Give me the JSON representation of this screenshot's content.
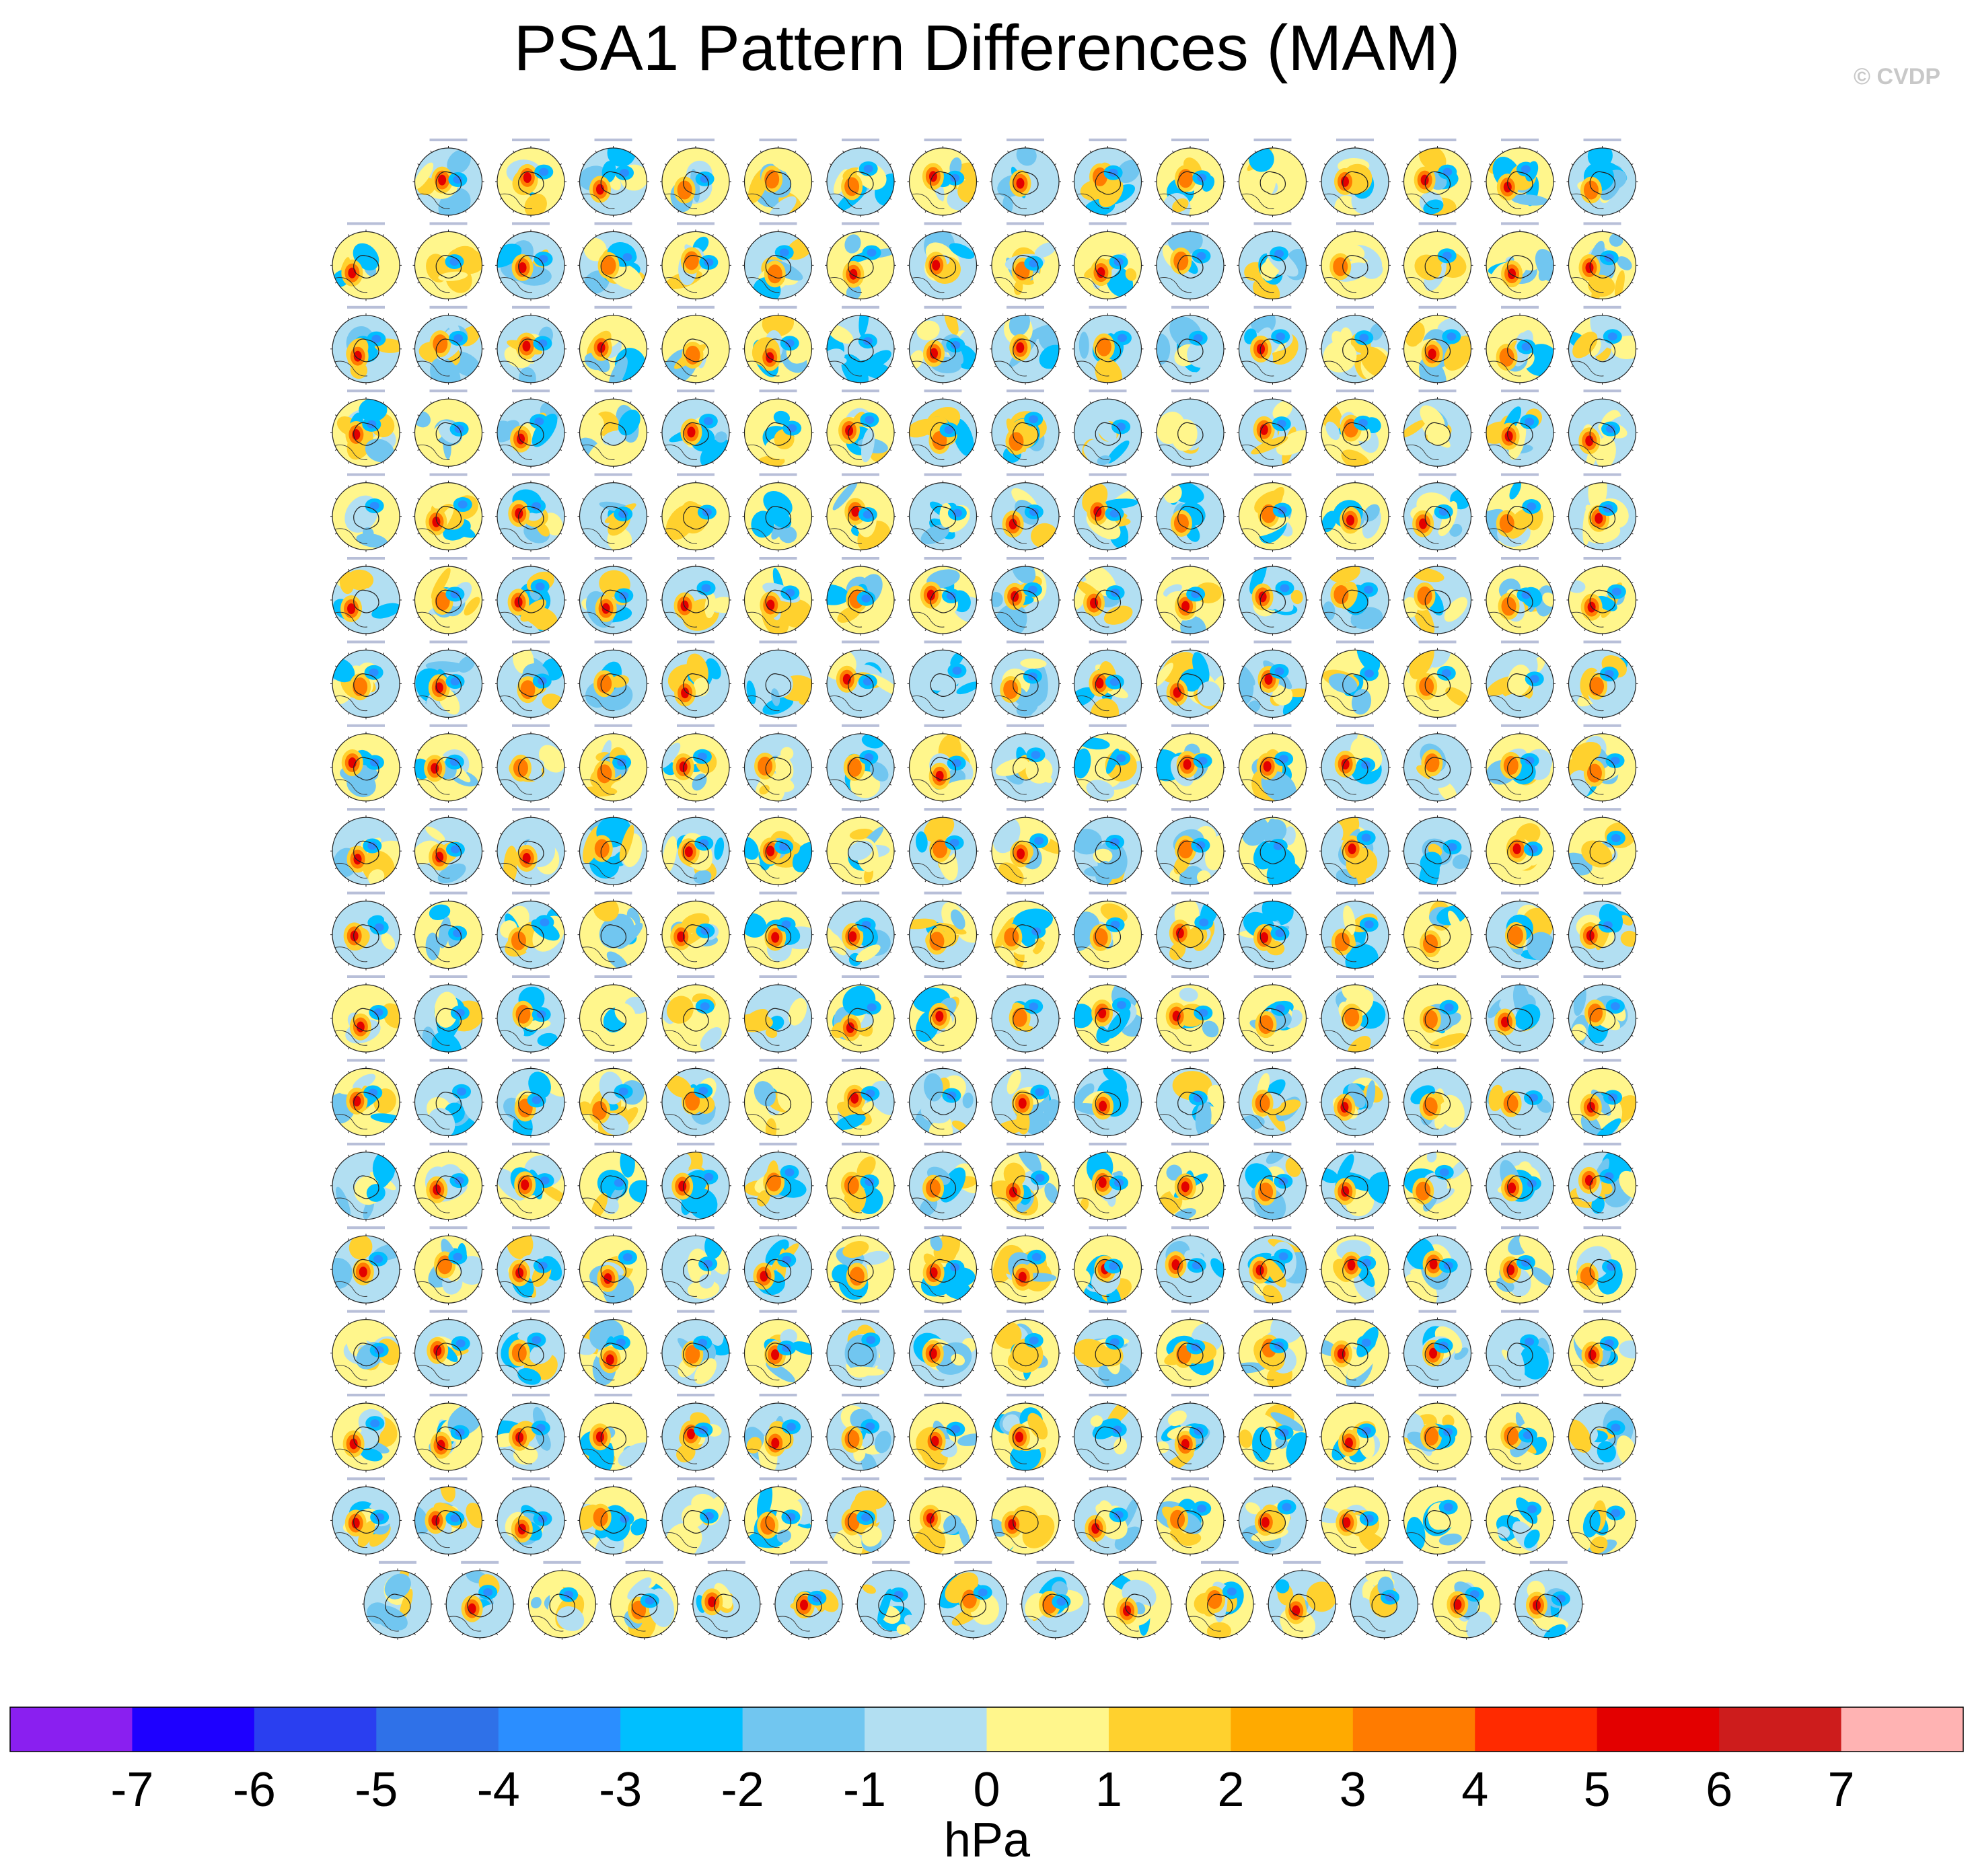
{
  "title": "PSA1 Pattern Differences (MAM)",
  "credit": "© CVDP",
  "chart_data": {
    "type": "heatmap",
    "title": "PSA1 Pattern Differences (MAM)",
    "description_type": "small-multiples polar stereographic maps",
    "rows": [
      15,
      16,
      16,
      16,
      16,
      16,
      16,
      16,
      16,
      16,
      16,
      16,
      16,
      16,
      16,
      16,
      16,
      15
    ],
    "row_alignment": [
      "right",
      "full",
      "full",
      "full",
      "full",
      "full",
      "full",
      "full",
      "full",
      "full",
      "full",
      "full",
      "full",
      "full",
      "full",
      "full",
      "full",
      "center"
    ],
    "colorbar": {
      "label": "hPa",
      "tick_labels": [
        "-7",
        "-6",
        "-5",
        "-4",
        "-3",
        "-2",
        "-1",
        "0",
        "1",
        "2",
        "3",
        "4",
        "5",
        "6",
        "7"
      ],
      "colors": [
        "#8a1ff0",
        "#1e00ff",
        "#2a3ff0",
        "#2f71e8",
        "#2b8eff",
        "#00bfff",
        "#71c6f0",
        "#b2dff2",
        "#fff68c",
        "#ffd12e",
        "#ffaa00",
        "#ff7b00",
        "#ff2a00",
        "#e30000",
        "#cd1c1c",
        "#ffb3b3"
      ]
    }
  }
}
